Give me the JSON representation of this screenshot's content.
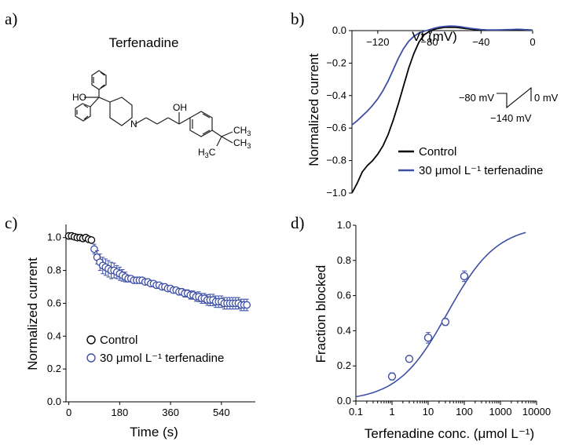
{
  "panel_labels": {
    "a": "a)",
    "b": "b)",
    "c": "c)",
    "d": "d)"
  },
  "panel_a": {
    "title": "Terfenadine",
    "atoms": {
      "ho": "HO",
      "oh": "OH",
      "n": "N",
      "ch3_top": "CH",
      "ch3_top_sub": "3",
      "ch3_right": "CH",
      "ch3_right_sub": "3",
      "h3c": "H",
      "h3c_sub": "3",
      "h3c_c": "C"
    }
  },
  "chart_data": [
    {
      "panel": "b",
      "type": "line",
      "xlabel": "Vt (mV)",
      "ylabel": "Normalized current",
      "xlim": [
        -140,
        0
      ],
      "ylim": [
        -1.0,
        0.0
      ],
      "xticks": [
        -120,
        -80,
        -40,
        0
      ],
      "yticks": [
        0.0,
        -0.2,
        -0.4,
        -0.6,
        -0.8,
        -1.0
      ],
      "legend_position": "bottom-right",
      "series": [
        {
          "name": "Control",
          "color": "#000000",
          "x": [
            -140,
            -136,
            -132,
            -128,
            -124,
            -120,
            -116,
            -112,
            -108,
            -104,
            -100,
            -96,
            -92,
            -88,
            -84,
            -80,
            -76,
            -72,
            -68,
            -64,
            -60,
            -56,
            -52,
            -48,
            -44,
            -40,
            -36,
            -32,
            -28,
            -24,
            -20,
            -16,
            -12,
            -8,
            -4,
            0
          ],
          "y": [
            -1.0,
            -0.94,
            -0.87,
            -0.83,
            -0.8,
            -0.76,
            -0.71,
            -0.64,
            -0.55,
            -0.45,
            -0.34,
            -0.23,
            -0.14,
            -0.07,
            -0.025,
            -0.005,
            0.008,
            0.015,
            0.02,
            0.021,
            0.02,
            0.017,
            0.013,
            0.009,
            0.006,
            0.004,
            0.003,
            0.002,
            0.002,
            0.003,
            0.004,
            0.005,
            0.006,
            0.006,
            0.005,
            0.003
          ]
        },
        {
          "name": "30 μmol L⁻¹ terfenadine",
          "color": "#3d4fa6",
          "x": [
            -140,
            -136,
            -132,
            -128,
            -124,
            -120,
            -116,
            -112,
            -108,
            -104,
            -100,
            -96,
            -92,
            -88,
            -84,
            -80,
            -76,
            -72,
            -68,
            -64,
            -60,
            -56,
            -52,
            -48,
            -44,
            -40,
            -36,
            -32,
            -28,
            -24,
            -20,
            -16,
            -12,
            -8,
            -4,
            0
          ],
          "y": [
            -0.58,
            -0.555,
            -0.525,
            -0.495,
            -0.46,
            -0.42,
            -0.37,
            -0.31,
            -0.24,
            -0.17,
            -0.11,
            -0.065,
            -0.035,
            -0.015,
            -0.004,
            0.006,
            0.015,
            0.022,
            0.026,
            0.028,
            0.027,
            0.024,
            0.019,
            0.014,
            0.01,
            0.007,
            0.005,
            0.004,
            0.004,
            0.005,
            0.006,
            0.007,
            0.008,
            0.007,
            0.005,
            0.003
          ]
        }
      ],
      "protocol": {
        "hold": "−80 mV",
        "low": "−140 mV",
        "high": "0 mV"
      }
    },
    {
      "panel": "c",
      "type": "scatter",
      "xlabel": "Time (s)",
      "ylabel": "Normalized current",
      "xlim": [
        -10,
        660
      ],
      "ylim": [
        0.0,
        1.08
      ],
      "xticks": [
        0,
        180,
        360,
        540
      ],
      "yticks": [
        0.0,
        0.2,
        0.4,
        0.6,
        0.8,
        1.0
      ],
      "legend_position": "bottom-left",
      "series": [
        {
          "name": "Control",
          "color": "#000000",
          "x": [
            0,
            10,
            20,
            30,
            40,
            50,
            60,
            70,
            80
          ],
          "y": [
            1.01,
            1.01,
            1.005,
            1.0,
            1.0,
            0.995,
            1.0,
            0.99,
            0.985
          ],
          "err": [
            0.015,
            0.015,
            0.015,
            0.015,
            0.015,
            0.015,
            0.015,
            0.015,
            0.015
          ]
        },
        {
          "name": "30 μmol L⁻¹ terfenadine",
          "color": "#3d4fa6",
          "x": [
            90,
            100,
            110,
            120,
            130,
            140,
            150,
            160,
            170,
            180,
            190,
            200,
            210,
            220,
            230,
            240,
            250,
            260,
            270,
            280,
            290,
            300,
            310,
            320,
            330,
            340,
            350,
            360,
            370,
            380,
            390,
            400,
            410,
            420,
            430,
            440,
            450,
            460,
            470,
            480,
            490,
            500,
            510,
            520,
            530,
            540,
            550,
            560,
            570,
            580,
            590,
            600,
            610,
            620,
            630
          ],
          "y": [
            0.93,
            0.88,
            0.85,
            0.83,
            0.82,
            0.81,
            0.8,
            0.8,
            0.79,
            0.78,
            0.77,
            0.76,
            0.75,
            0.75,
            0.74,
            0.74,
            0.74,
            0.74,
            0.73,
            0.73,
            0.72,
            0.72,
            0.71,
            0.71,
            0.7,
            0.7,
            0.69,
            0.69,
            0.68,
            0.68,
            0.67,
            0.67,
            0.66,
            0.66,
            0.65,
            0.65,
            0.64,
            0.64,
            0.63,
            0.63,
            0.62,
            0.62,
            0.62,
            0.61,
            0.61,
            0.61,
            0.6,
            0.6,
            0.6,
            0.6,
            0.6,
            0.6,
            0.59,
            0.59,
            0.59
          ],
          "err": [
            0.03,
            0.04,
            0.05,
            0.05,
            0.05,
            0.05,
            0.05,
            0.045,
            0.04,
            0.04,
            0.035,
            0.03,
            0.02,
            0.015,
            0.01,
            0.01,
            0.01,
            0.01,
            0.01,
            0.01,
            0.01,
            0.01,
            0.012,
            0.012,
            0.015,
            0.015,
            0.015,
            0.015,
            0.018,
            0.018,
            0.02,
            0.02,
            0.022,
            0.022,
            0.025,
            0.025,
            0.028,
            0.03,
            0.03,
            0.03,
            0.032,
            0.035,
            0.035,
            0.035,
            0.035,
            0.035,
            0.035,
            0.035,
            0.035,
            0.035,
            0.035,
            0.035,
            0.035,
            0.035,
            0.035
          ]
        }
      ]
    },
    {
      "panel": "d",
      "type": "scatter",
      "xlabel": "Terfenadine conc. (μmol L⁻¹)",
      "ylabel": "Fraction blocked",
      "xscale": "log",
      "xlim": [
        0.1,
        10000
      ],
      "ylim": [
        0.0,
        1.0
      ],
      "xticks": [
        "0.1",
        "1",
        "10",
        "100",
        "1000",
        "10000"
      ],
      "yticks": [
        0.0,
        0.2,
        0.4,
        0.6,
        0.8,
        1.0
      ],
      "series": [
        {
          "name": "data",
          "color": "#3d4fa6",
          "x": [
            1,
            3,
            10,
            30,
            100
          ],
          "y": [
            0.14,
            0.24,
            0.36,
            0.45,
            0.71
          ],
          "err": [
            0.02,
            0.015,
            0.03,
            0.02,
            0.03
          ]
        },
        {
          "name": "fit",
          "color": "#3d4fa6",
          "kind": "hill",
          "ic50": 34,
          "hill": 0.63,
          "range": [
            0.1,
            5000
          ]
        }
      ]
    }
  ]
}
